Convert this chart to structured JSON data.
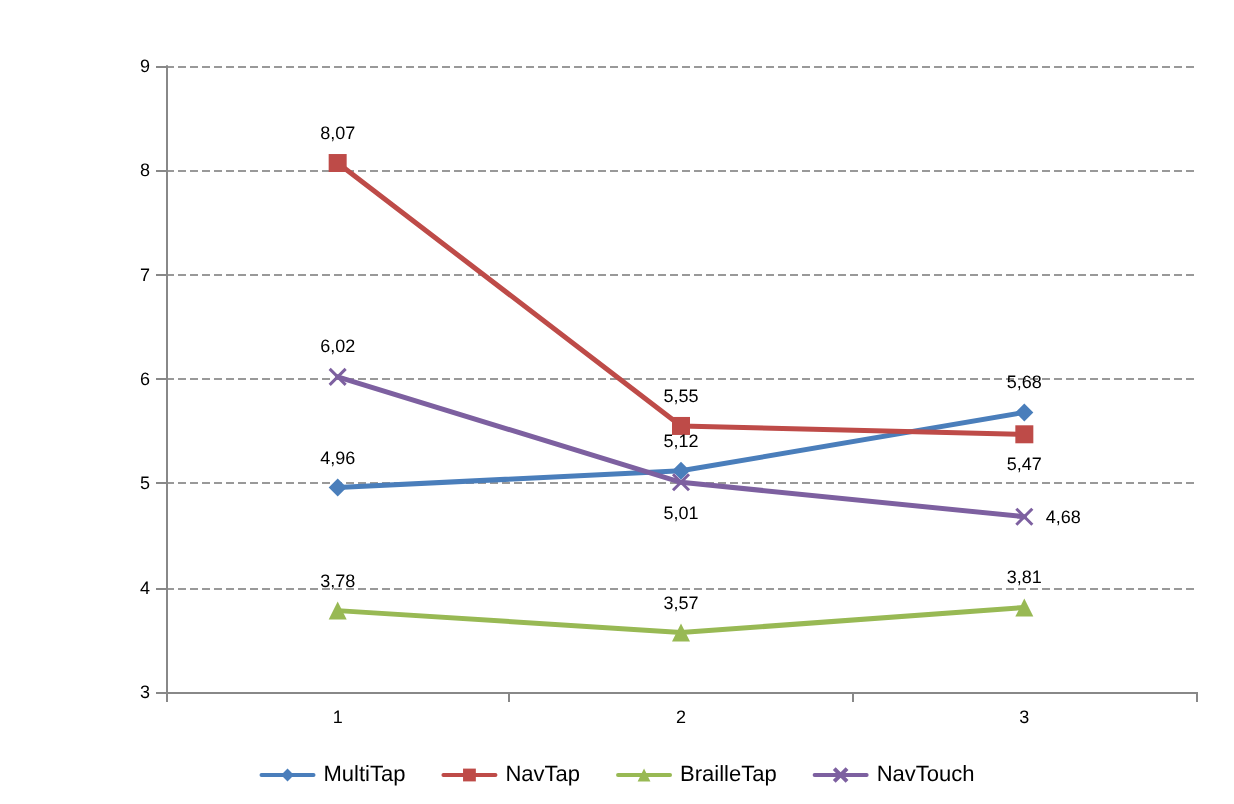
{
  "chart_data": {
    "type": "line",
    "categories": [
      "1",
      "2",
      "3"
    ],
    "ylim": [
      3,
      9
    ],
    "yticks": [
      3,
      4,
      5,
      6,
      7,
      8,
      9
    ],
    "grid": "y",
    "legend": "bottom",
    "line_style": "solid",
    "series": [
      {
        "name": "MultiTap",
        "color": "#4a7ebb",
        "marker": "diamond",
        "values": [
          4.96,
          5.12,
          5.68
        ],
        "value_labels": [
          "4,96",
          "5,12",
          "5,68"
        ]
      },
      {
        "name": "NavTap",
        "color": "#be4b48",
        "marker": "square",
        "values": [
          8.07,
          5.55,
          5.47
        ],
        "value_labels": [
          "8,07",
          "5,55",
          "5,47"
        ]
      },
      {
        "name": "BrailleTap",
        "color": "#98b954",
        "marker": "triangle",
        "values": [
          3.78,
          3.57,
          3.81
        ],
        "value_labels": [
          "3,78",
          "3,57",
          "3,81"
        ]
      },
      {
        "name": "NavTouch",
        "color": "#7d60a0",
        "marker": "cross",
        "values": [
          6.02,
          5.01,
          4.68
        ],
        "value_labels": [
          "6,02",
          "5,01",
          "4,68"
        ]
      }
    ]
  }
}
